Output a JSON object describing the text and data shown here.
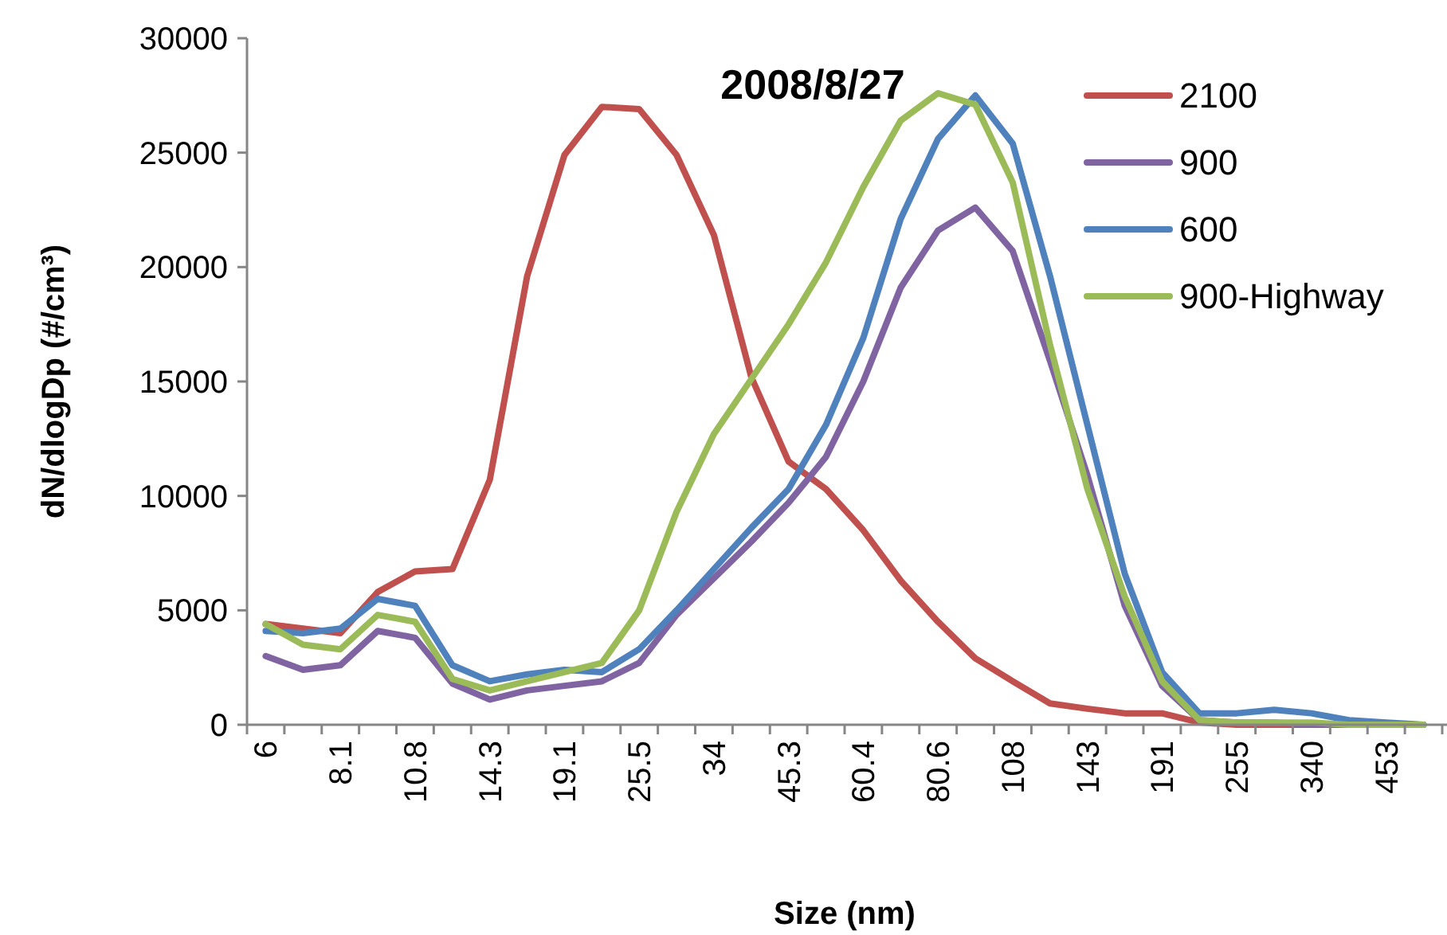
{
  "chart_data": {
    "type": "line",
    "title": "2008/8/27",
    "xlabel": "Size (nm)",
    "ylabel": "dN/dlogDp (#/cm³)",
    "categories": [
      "6",
      null,
      "8.1",
      null,
      "10.8",
      null,
      "14.3",
      null,
      "19.1",
      null,
      "25.5",
      null,
      "34",
      null,
      "45.3",
      null,
      "60.4",
      null,
      "80.6",
      null,
      "108",
      null,
      "143",
      null,
      "191",
      null,
      "255",
      null,
      "340",
      null,
      "453",
      null
    ],
    "ylim": [
      0,
      30000
    ],
    "yticks": [
      0,
      5000,
      10000,
      15000,
      20000,
      25000,
      30000
    ],
    "grid": false,
    "legend": "top right",
    "marker": "none",
    "line_style": "solid",
    "series": [
      {
        "name": "2100",
        "color": "#c0504d",
        "values": [
          4400,
          4200,
          4000,
          5800,
          6700,
          6800,
          10700,
          19600,
          24900,
          27000,
          26900,
          24900,
          21400,
          15200,
          11500,
          10300,
          8500,
          6300,
          4500,
          2900,
          1900,
          930,
          700,
          500,
          500,
          100,
          0,
          0,
          0,
          0,
          null,
          null
        ]
      },
      {
        "name": "900",
        "color": "#8064a2",
        "values": [
          3000,
          2400,
          2600,
          4100,
          3800,
          1800,
          1100,
          1500,
          1700,
          1900,
          2700,
          4800,
          6400,
          8000,
          9700,
          11700,
          15000,
          19100,
          21600,
          22600,
          20700,
          15900,
          10900,
          5200,
          1700,
          200,
          100,
          100,
          0,
          0,
          0,
          0
        ]
      },
      {
        "name": "600",
        "color": "#4f81bd",
        "values": [
          4100,
          4000,
          4200,
          5500,
          5200,
          2600,
          1900,
          2200,
          2400,
          2300,
          3300,
          5000,
          6800,
          8600,
          10300,
          13100,
          16900,
          22100,
          25600,
          27500,
          25400,
          19600,
          13100,
          6600,
          2300,
          500,
          500,
          650,
          500,
          200,
          100,
          0
        ]
      },
      {
        "name": "900-Highway",
        "color": "#9bbb59",
        "values": [
          4400,
          3500,
          3300,
          4800,
          4500,
          2000,
          1500,
          1900,
          2300,
          2700,
          5000,
          9300,
          12700,
          15100,
          17500,
          20200,
          23500,
          26400,
          27600,
          27100,
          23700,
          16600,
          10300,
          5600,
          1900,
          200,
          100,
          100,
          100,
          0,
          0,
          0
        ]
      }
    ]
  }
}
